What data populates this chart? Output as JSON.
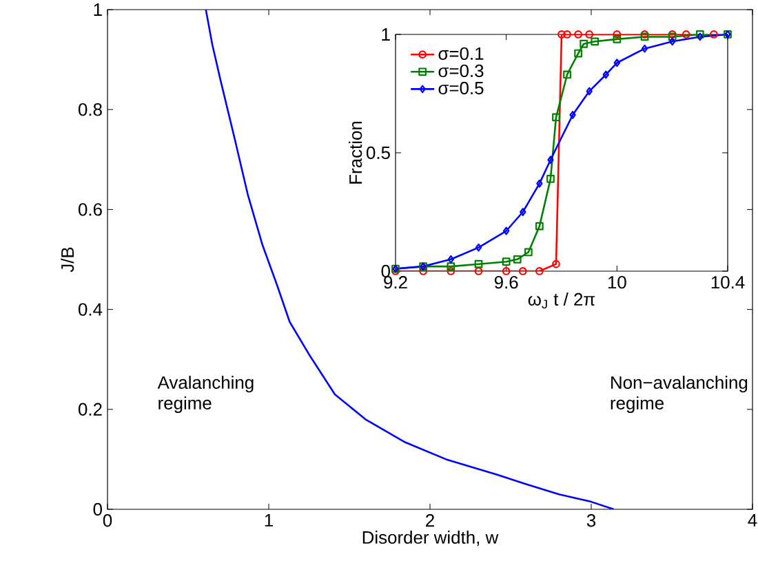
{
  "chart_data": [
    {
      "type": "line",
      "xlabel": "Disorder width, w",
      "ylabel": "J/B",
      "xlim": [
        0,
        4
      ],
      "ylim": [
        0,
        1
      ],
      "xticks": [
        0,
        1,
        2,
        3,
        4
      ],
      "yticks": [
        0,
        0.2,
        0.4,
        0.6,
        0.8,
        1
      ],
      "grid": false,
      "legend": false,
      "marker": "none",
      "line_style": "solid",
      "annotations": [
        "Avalanching regime",
        "Non−avalanching regime"
      ],
      "series": [
        {
          "color": "#0000ff",
          "x": [
            0.61,
            0.65,
            0.7,
            0.79,
            0.87,
            0.96,
            1.05,
            1.13,
            1.25,
            1.41,
            1.6,
            1.84,
            2.1,
            2.41,
            2.6,
            2.8,
            3.0,
            3.14
          ],
          "values": [
            1,
            0.93,
            0.86,
            0.74,
            0.63,
            0.53,
            0.45,
            0.375,
            0.31,
            0.23,
            0.18,
            0.135,
            0.1,
            0.07,
            0.05,
            0.03,
            0.015,
            0
          ]
        }
      ]
    },
    {
      "type": "line",
      "xlabel": "ω$_{J}$ t / 2π",
      "ylabel": "Fraction",
      "xlim": [
        9.2,
        10.4
      ],
      "ylim": [
        0,
        1
      ],
      "xticks": [
        9.2,
        9.6,
        10,
        10.4
      ],
      "yticks": [
        0,
        0.5,
        1
      ],
      "grid": false,
      "legend": "top left",
      "line_style": "solid",
      "series": [
        {
          "name": "σ=0.1",
          "color": "#ff0000",
          "marker": "circle",
          "x": [
            9.2,
            9.3,
            9.4,
            9.5,
            9.6,
            9.66,
            9.72,
            9.78,
            9.8,
            9.82,
            9.86,
            9.9,
            10,
            10.1,
            10.2,
            10.25,
            10.35
          ],
          "values": [
            0,
            0,
            0,
            0,
            0,
            0,
            0,
            0.03,
            1,
            1,
            1,
            1,
            1,
            1,
            1,
            1,
            1
          ]
        },
        {
          "name": "σ=0.3",
          "color": "#008000",
          "marker": "square",
          "x": [
            9.2,
            9.3,
            9.4,
            9.5,
            9.6,
            9.64,
            9.68,
            9.72,
            9.76,
            9.78,
            9.82,
            9.86,
            9.88,
            9.92,
            10,
            10.1,
            10.2,
            10.3,
            10.4
          ],
          "values": [
            0.01,
            0.02,
            0.02,
            0.03,
            0.04,
            0.05,
            0.08,
            0.19,
            0.39,
            0.65,
            0.83,
            0.92,
            0.96,
            0.97,
            0.98,
            0.99,
            0.99,
            1,
            1
          ]
        },
        {
          "name": "σ=0.5",
          "color": "#0000ff",
          "marker": "diamond",
          "x": [
            9.2,
            9.3,
            9.4,
            9.5,
            9.6,
            9.66,
            9.72,
            9.76,
            9.84,
            9.9,
            9.96,
            10,
            10.1,
            10.2,
            10.3,
            10.4
          ],
          "values": [
            0.01,
            0.02,
            0.05,
            0.1,
            0.17,
            0.25,
            0.37,
            0.47,
            0.66,
            0.76,
            0.83,
            0.88,
            0.94,
            0.97,
            0.99,
            1
          ]
        }
      ]
    }
  ]
}
